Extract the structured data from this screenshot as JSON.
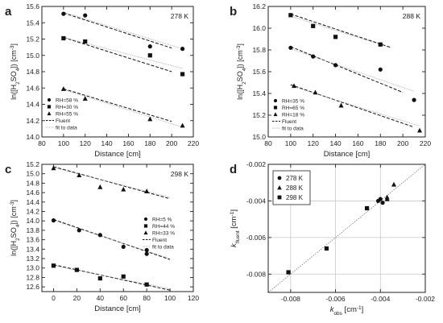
{
  "chart_data": [
    {
      "panel": "a",
      "type": "scatter",
      "annotation": "278 K",
      "xlabel": "Distance [cm]",
      "ylabel_parts": [
        "ln([H",
        "2",
        "SO",
        "4",
        "]) [cm",
        "-3",
        "]"
      ],
      "xlim": [
        80,
        220
      ],
      "ylim": [
        14.0,
        15.6
      ],
      "xticks": [
        80,
        100,
        120,
        140,
        160,
        180,
        200,
        220
      ],
      "yticks": [
        14.0,
        14.2,
        14.4,
        14.6,
        14.8,
        15.0,
        15.2,
        15.4,
        15.6
      ],
      "ytick_decimals": 1,
      "legend_position": "lower-left",
      "series": [
        {
          "name": "RH=58 %",
          "marker": "circle",
          "x": [
            100,
            120,
            180,
            210
          ],
          "y": [
            15.51,
            15.49,
            15.11,
            15.08
          ],
          "fluent": [
            [
              100,
              15.52
            ],
            [
              200,
              15.09
            ]
          ],
          "fit": [
            [
              100,
              15.53
            ],
            [
              210,
              15.08
            ]
          ]
        },
        {
          "name": "RH=30 %",
          "marker": "square",
          "x": [
            100,
            120,
            180,
            210
          ],
          "y": [
            15.21,
            15.17,
            15.0,
            14.77
          ],
          "fluent": [
            [
              100,
              15.22
            ],
            [
              200,
              14.8
            ]
          ],
          "fit": [
            [
              100,
              15.22
            ],
            [
              210,
              14.84
            ]
          ]
        },
        {
          "name": "RH=55 %",
          "marker": "triangle",
          "x": [
            100,
            120,
            180,
            210
          ],
          "y": [
            14.59,
            14.47,
            14.22,
            14.14
          ],
          "fluent": [
            [
              100,
              14.59
            ],
            [
              200,
              14.19
            ]
          ],
          "fit": [
            [
              100,
              14.58
            ],
            [
              210,
              14.12
            ]
          ]
        }
      ],
      "line_legend": [
        "Fluent",
        "fit to data"
      ]
    },
    {
      "panel": "b",
      "type": "scatter",
      "annotation": "288 K",
      "xlabel": "Distance [cm]",
      "ylabel_parts": [
        "ln([H",
        "2",
        "SO",
        "4",
        "]) [cm",
        "-3",
        "]"
      ],
      "xlim": [
        80,
        220
      ],
      "ylim": [
        15.0,
        16.2
      ],
      "xticks": [
        80,
        100,
        120,
        140,
        160,
        180,
        200,
        220
      ],
      "yticks": [
        15.0,
        15.2,
        15.4,
        15.6,
        15.8,
        16.0,
        16.2
      ],
      "ytick_decimals": 1,
      "legend_position": "lower-left",
      "series": [
        {
          "name": "RH=35 %",
          "marker": "circle",
          "x": [
            100,
            120,
            140,
            180,
            210
          ],
          "y": [
            15.82,
            15.74,
            15.66,
            15.62,
            15.34
          ],
          "fluent": [
            [
              100,
              15.83
            ],
            [
              200,
              15.41
            ]
          ],
          "fit": [
            [
              100,
              15.81
            ],
            [
              210,
              15.42
            ]
          ]
        },
        {
          "name": "RH=65 %",
          "marker": "square",
          "x": [
            100,
            120,
            140,
            180
          ],
          "y": [
            16.12,
            16.02,
            15.92,
            15.85
          ],
          "fluent": [
            [
              100,
              16.13
            ],
            [
              190,
              15.82
            ]
          ],
          "fit": [
            [
              100,
              16.11
            ],
            [
              180,
              15.85
            ]
          ]
        },
        {
          "name": "RH=18 %",
          "marker": "triangle",
          "x": [
            103,
            122,
            145,
            215
          ],
          "y": [
            15.47,
            15.41,
            15.29,
            15.06
          ],
          "fluent": [
            [
              100,
              15.48
            ],
            [
              210,
              15.09
            ]
          ],
          "fit": [
            [
              100,
              15.47
            ],
            [
              215,
              15.1
            ]
          ]
        }
      ],
      "line_legend": [
        "Fluent",
        "fit to data"
      ]
    },
    {
      "panel": "c",
      "type": "scatter",
      "annotation": "298 K",
      "xlabel": "Distance [cm]",
      "ylabel_parts": [
        "ln([H",
        "2",
        "SO",
        "4",
        "]) [cm",
        "-3",
        "]"
      ],
      "xlim": [
        -10,
        120
      ],
      "ylim": [
        12.5,
        15.2
      ],
      "xticks": [
        0,
        20,
        40,
        60,
        80,
        100,
        120
      ],
      "yticks": [
        12.6,
        12.8,
        13.0,
        13.2,
        13.4,
        13.6,
        13.8,
        14.0,
        14.2,
        14.4,
        14.6,
        14.8,
        15.0,
        15.2
      ],
      "ytick_decimals": 1,
      "legend_position": "right",
      "series": [
        {
          "name": "RH=5 %",
          "marker": "circle",
          "x": [
            0,
            22,
            40,
            60,
            80,
            80
          ],
          "y": [
            14.01,
            13.8,
            13.7,
            13.45,
            13.38,
            13.3
          ],
          "fluent": [
            [
              0,
              14.03
            ],
            [
              100,
              13.18
            ]
          ],
          "fit": [
            [
              0,
              14.01
            ],
            [
              100,
              13.2
            ]
          ]
        },
        {
          "name": "RH=44 %",
          "marker": "square",
          "x": [
            0,
            20,
            40,
            60,
            80
          ],
          "y": [
            13.05,
            12.96,
            12.78,
            12.82,
            12.65
          ],
          "fluent": [
            [
              0,
              13.07
            ],
            [
              100,
              12.53
            ]
          ],
          "fit": [
            [
              0,
              13.05
            ],
            [
              100,
              12.56
            ]
          ]
        },
        {
          "name": "RH=33 %",
          "marker": "triangle",
          "x": [
            0,
            22,
            40,
            60,
            80
          ],
          "y": [
            15.12,
            14.97,
            14.72,
            14.67,
            14.63
          ],
          "fluent": [
            [
              0,
              15.15
            ],
            [
              100,
              14.47
            ]
          ],
          "fit": [
            [
              0,
              15.13
            ],
            [
              100,
              14.5
            ]
          ]
        }
      ],
      "line_legend": [
        "Fluent",
        "fit to data"
      ]
    },
    {
      "panel": "d",
      "type": "scatter",
      "xlabel_parts": [
        "k",
        "obs",
        " [cm",
        "-1",
        "]"
      ],
      "ylabel_parts": [
        "k",
        "fluent",
        " [cm",
        "-1",
        "]"
      ],
      "xlim": [
        -0.009,
        -0.002
      ],
      "ylim": [
        -0.009,
        -0.002
      ],
      "xticks": [
        -0.008,
        -0.006,
        -0.004,
        -0.002
      ],
      "yticks": [
        -0.008,
        -0.006,
        -0.004,
        -0.002
      ],
      "ytick_decimals": 3,
      "grid": true,
      "diagonal": [
        [
          -0.009,
          -0.009
        ],
        [
          -0.002,
          -0.002
        ]
      ],
      "legend_position": "top-left",
      "series": [
        {
          "name": "278 K",
          "marker": "circle",
          "x": [
            -0.0041,
            -0.004,
            -0.0039
          ],
          "y": [
            -0.004,
            -0.0039,
            -0.0041
          ]
        },
        {
          "name": "288 K",
          "marker": "triangle",
          "x": [
            -0.0037,
            -0.0034,
            -0.0037
          ],
          "y": [
            -0.0038,
            -0.0031,
            -0.0039
          ]
        },
        {
          "name": "298 K",
          "marker": "square",
          "x": [
            -0.0081,
            -0.0064,
            -0.0046
          ],
          "y": [
            -0.0079,
            -0.0066,
            -0.0044
          ]
        }
      ]
    }
  ]
}
